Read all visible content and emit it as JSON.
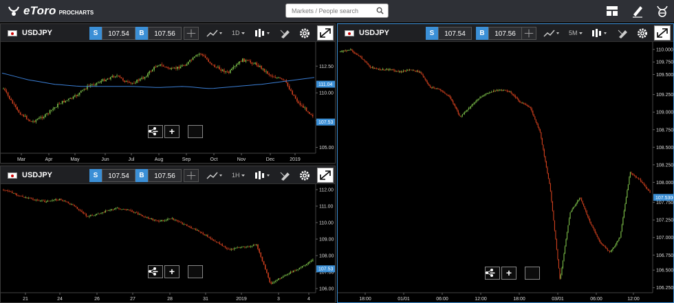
{
  "app": {
    "logo_text": "eToro",
    "logo_sub": "PROCHARTS"
  },
  "search": {
    "placeholder": "Markets / People search"
  },
  "toolbar_icons": [
    "layout-icon",
    "pencil-icon",
    "etoro-icon"
  ],
  "panels": [
    {
      "symbol": "USDJPY",
      "sell_label": "S",
      "sell_value": "107.54",
      "buy_label": "B",
      "buy_value": "107.56",
      "timeframe": "1D",
      "x_ticks": [
        "Mar",
        "Apr",
        "May",
        "Jun",
        "Jul",
        "Aug",
        "Sep",
        "Oct",
        "Nov",
        "Dec",
        "2019"
      ],
      "y_ticks": [
        "112.50",
        "110.00",
        "107.50",
        "105.00"
      ],
      "ma_badge": "111.04",
      "price_badge": "107.53"
    },
    {
      "symbol": "USDJPY",
      "sell_label": "S",
      "sell_value": "107.54",
      "buy_label": "B",
      "buy_value": "107.56",
      "timeframe": "1H",
      "x_ticks": [
        "21",
        "24",
        "26",
        "27",
        "28",
        "31",
        "2019",
        "3",
        "4"
      ],
      "y_ticks": [
        "112.00",
        "111.00",
        "110.00",
        "109.00",
        "108.00",
        "107.00",
        "106.00"
      ],
      "price_badge": "107.53"
    },
    {
      "symbol": "USDJPY",
      "sell_label": "S",
      "sell_value": "107.54",
      "buy_label": "B",
      "buy_value": "107.56",
      "timeframe": "5M",
      "x_ticks": [
        "18:00",
        "01/01",
        "06:00",
        "12:00",
        "18:00",
        "03/01",
        "06:00",
        "12:00"
      ],
      "y_ticks": [
        "110.0000",
        "109.7500",
        "109.5000",
        "109.2500",
        "109.0000",
        "108.7500",
        "108.5000",
        "108.2500",
        "108.0000",
        "107.7500",
        "107.2500",
        "107.0000",
        "106.7500",
        "106.5000",
        "106.2500"
      ],
      "price_badge": "107.5300"
    }
  ],
  "colors": {
    "accent": "#3b8fd6",
    "up": "#7ec24a",
    "down": "#d0401e",
    "ma": "#3b7fd6"
  }
}
